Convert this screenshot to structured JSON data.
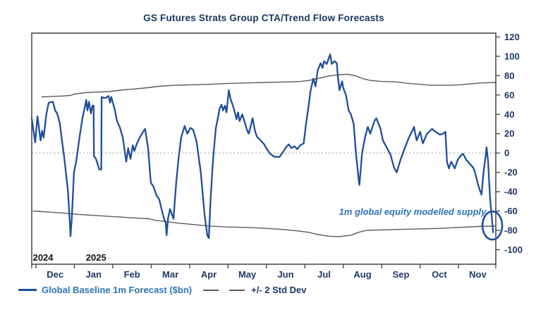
{
  "page": {
    "background": "#ffffff"
  },
  "legend": {
    "forecast_label": "Global Baseline 1m Forecast ($bn)",
    "stddev_label": "+/- 2 Std Dev"
  },
  "chart_data": {
    "type": "line",
    "title": "GS Futures Strats Group CTA/Trend Flow Forecasts",
    "xlabel": "",
    "ylabel": "",
    "x_unit": "months since 2024-12-01",
    "x_tick_labels": [
      "Dec",
      "Jan",
      "Feb",
      "Mar",
      "Apr",
      "May",
      "Jun",
      "Jul",
      "Aug",
      "Sep",
      "Oct",
      "Nov"
    ],
    "years": [
      {
        "label": "2024",
        "m": -0.08
      },
      {
        "label": "2025",
        "m": 1.3
      }
    ],
    "y_ticks": [
      120,
      100,
      80,
      60,
      40,
      20,
      0,
      -20,
      -40,
      -60,
      -80,
      -100
    ],
    "x_ticks": [
      -0.11,
      0,
      1,
      2,
      3,
      4,
      5,
      6,
      7,
      8,
      9,
      10,
      11,
      11.97
    ],
    "x_range": [
      -0.11,
      11.97
    ],
    "value_range": [
      -115,
      124
    ],
    "ylim": [
      -100,
      120
    ],
    "grid": "none (dotted zero line only)",
    "legend_position": "bottom-left",
    "colors": {
      "forecast": "#1F4E9B",
      "band": "#5a5a5a",
      "frame": "#4d4d4d",
      "zero_line": "#b3b3b3",
      "axis_text": "#1F3864",
      "title_text": "#17365D",
      "annotation_text": "#2E74B5"
    },
    "annotation": {
      "text": "1m global equity modelled supply",
      "m": 11.72,
      "value": -64
    },
    "highlight_ellipse": {
      "m": 11.88,
      "value": -75,
      "rx": 14,
      "ry": 20
    },
    "series": [
      {
        "name": "Global Baseline 1m Forecast ($bn)",
        "color": "#1F4E9B",
        "points": [
          [
            -0.11,
            36
          ],
          [
            -0.02,
            11
          ],
          [
            0.04,
            38
          ],
          [
            0.12,
            13
          ],
          [
            0.16,
            23
          ],
          [
            0.2,
            16
          ],
          [
            0.27,
            40
          ],
          [
            0.33,
            52
          ],
          [
            0.44,
            53
          ],
          [
            0.5,
            44
          ],
          [
            0.55,
            41
          ],
          [
            0.62,
            31
          ],
          [
            0.68,
            12
          ],
          [
            0.73,
            -3
          ],
          [
            0.83,
            -38
          ],
          [
            0.88,
            -70
          ],
          [
            0.9,
            -86
          ],
          [
            0.93,
            -70
          ],
          [
            0.99,
            -20
          ],
          [
            1.05,
            -8
          ],
          [
            1.14,
            18
          ],
          [
            1.21,
            36
          ],
          [
            1.28,
            49
          ],
          [
            1.31,
            55
          ],
          [
            1.34,
            44
          ],
          [
            1.38,
            53
          ],
          [
            1.43,
            41
          ],
          [
            1.47,
            49
          ],
          [
            1.5,
            49
          ],
          [
            1.51,
            -3
          ],
          [
            1.56,
            -6
          ],
          [
            1.65,
            -17
          ],
          [
            1.7,
            -17
          ],
          [
            1.71,
            58
          ],
          [
            1.76,
            57
          ],
          [
            1.82,
            57
          ],
          [
            1.89,
            59
          ],
          [
            1.93,
            52
          ],
          [
            1.96,
            58
          ],
          [
            2.05,
            45
          ],
          [
            2.11,
            33
          ],
          [
            2.18,
            27
          ],
          [
            2.26,
            16
          ],
          [
            2.35,
            -9
          ],
          [
            2.4,
            5
          ],
          [
            2.46,
            -6
          ],
          [
            2.52,
            8
          ],
          [
            2.56,
            2
          ],
          [
            2.63,
            10
          ],
          [
            2.7,
            16
          ],
          [
            2.79,
            22
          ],
          [
            2.84,
            25
          ],
          [
            2.92,
            5
          ],
          [
            2.99,
            -31
          ],
          [
            3.05,
            -34
          ],
          [
            3.14,
            -44
          ],
          [
            3.21,
            -48
          ],
          [
            3.32,
            -66
          ],
          [
            3.38,
            -73
          ],
          [
            3.4,
            -85
          ],
          [
            3.44,
            -67
          ],
          [
            3.49,
            -58
          ],
          [
            3.58,
            -68
          ],
          [
            3.65,
            -31
          ],
          [
            3.71,
            -6
          ],
          [
            3.78,
            16
          ],
          [
            3.87,
            28
          ],
          [
            3.94,
            20
          ],
          [
            4.02,
            26
          ],
          [
            4.09,
            24
          ],
          [
            4.18,
            12
          ],
          [
            4.29,
            -20
          ],
          [
            4.39,
            -64
          ],
          [
            4.46,
            -85
          ],
          [
            4.5,
            -88
          ],
          [
            4.55,
            -45
          ],
          [
            4.61,
            -7
          ],
          [
            4.68,
            25
          ],
          [
            4.73,
            35
          ],
          [
            4.78,
            46
          ],
          [
            4.83,
            50
          ],
          [
            4.87,
            44
          ],
          [
            4.92,
            49
          ],
          [
            4.96,
            42
          ],
          [
            5.02,
            65
          ],
          [
            5.07,
            55
          ],
          [
            5.11,
            51
          ],
          [
            5.15,
            46
          ],
          [
            5.22,
            35
          ],
          [
            5.26,
            42
          ],
          [
            5.3,
            33
          ],
          [
            5.37,
            40
          ],
          [
            5.44,
            31
          ],
          [
            5.5,
            23
          ],
          [
            5.54,
            20
          ],
          [
            5.64,
            36
          ],
          [
            5.7,
            23
          ],
          [
            5.75,
            17
          ],
          [
            5.85,
            13
          ],
          [
            5.94,
            9
          ],
          [
            6.03,
            3
          ],
          [
            6.1,
            -1
          ],
          [
            6.21,
            -4
          ],
          [
            6.34,
            -4
          ],
          [
            6.43,
            1
          ],
          [
            6.51,
            6
          ],
          [
            6.58,
            9
          ],
          [
            6.65,
            5
          ],
          [
            6.73,
            7
          ],
          [
            6.8,
            4
          ],
          [
            6.88,
            8
          ],
          [
            6.97,
            10
          ],
          [
            7.03,
            30
          ],
          [
            7.09,
            47
          ],
          [
            7.15,
            65
          ],
          [
            7.22,
            77
          ],
          [
            7.28,
            69
          ],
          [
            7.33,
            85
          ],
          [
            7.41,
            93
          ],
          [
            7.46,
            88
          ],
          [
            7.5,
            95
          ],
          [
            7.57,
            92
          ],
          [
            7.64,
            100
          ],
          [
            7.66,
            102
          ],
          [
            7.7,
            92
          ],
          [
            7.77,
            95
          ],
          [
            7.83,
            93
          ],
          [
            7.86,
            79
          ],
          [
            7.9,
            65
          ],
          [
            7.97,
            74
          ],
          [
            8.0,
            67
          ],
          [
            8.07,
            60
          ],
          [
            8.14,
            44
          ],
          [
            8.2,
            40
          ],
          [
            8.27,
            30
          ],
          [
            8.33,
            0
          ],
          [
            8.4,
            -27
          ],
          [
            8.42,
            -33
          ],
          [
            8.49,
            0
          ],
          [
            8.57,
            17
          ],
          [
            8.64,
            27
          ],
          [
            8.7,
            20
          ],
          [
            8.81,
            33
          ],
          [
            8.86,
            36
          ],
          [
            8.97,
            25
          ],
          [
            9.03,
            13
          ],
          [
            9.14,
            5
          ],
          [
            9.23,
            -2
          ],
          [
            9.32,
            -15
          ],
          [
            9.39,
            -20
          ],
          [
            9.49,
            -7
          ],
          [
            9.6,
            5
          ],
          [
            9.72,
            17
          ],
          [
            9.76,
            20
          ],
          [
            9.8,
            23
          ],
          [
            9.84,
            27
          ],
          [
            9.91,
            13
          ],
          [
            10.0,
            22
          ],
          [
            10.07,
            10
          ],
          [
            10.18,
            20
          ],
          [
            10.31,
            25
          ],
          [
            10.4,
            22
          ],
          [
            10.51,
            19
          ],
          [
            10.6,
            20
          ],
          [
            10.66,
            22
          ],
          [
            10.7,
            -9
          ],
          [
            10.75,
            -16
          ],
          [
            10.81,
            -9
          ],
          [
            10.9,
            -16
          ],
          [
            10.98,
            -7
          ],
          [
            11.07,
            -2
          ],
          [
            11.12,
            -1
          ],
          [
            11.2,
            -7
          ],
          [
            11.29,
            -11
          ],
          [
            11.38,
            -15
          ],
          [
            11.43,
            -20
          ],
          [
            11.49,
            -30
          ],
          [
            11.54,
            -37
          ],
          [
            11.6,
            -43
          ],
          [
            11.65,
            -20
          ],
          [
            11.71,
            -2
          ],
          [
            11.73,
            6
          ],
          [
            11.77,
            -9
          ],
          [
            11.8,
            -32
          ],
          [
            11.83,
            -52
          ],
          [
            11.86,
            -64
          ],
          [
            11.9,
            -82
          ]
        ]
      },
      {
        "name": "+2 Std Dev",
        "color": "#5a5a5a",
        "points": [
          [
            0.15,
            58
          ],
          [
            0.4,
            58.5
          ],
          [
            0.7,
            59
          ],
          [
            0.9,
            59.5
          ],
          [
            1.0,
            61
          ],
          [
            1.3,
            62.5
          ],
          [
            1.6,
            63
          ],
          [
            1.9,
            63.5
          ],
          [
            2.2,
            65
          ],
          [
            2.5,
            66
          ],
          [
            2.9,
            67.5
          ],
          [
            3.2,
            69
          ],
          [
            3.6,
            70
          ],
          [
            4.0,
            70.5
          ],
          [
            4.5,
            71
          ],
          [
            5.0,
            72
          ],
          [
            5.5,
            72.5
          ],
          [
            6.0,
            73
          ],
          [
            6.5,
            73.5
          ],
          [
            6.9,
            74
          ],
          [
            7.1,
            75
          ],
          [
            7.4,
            77.5
          ],
          [
            7.6,
            79.5
          ],
          [
            7.9,
            81
          ],
          [
            8.1,
            81.5
          ],
          [
            8.3,
            80
          ],
          [
            8.5,
            77
          ],
          [
            8.7,
            75
          ],
          [
            9.0,
            74
          ],
          [
            9.4,
            73.5
          ],
          [
            9.7,
            72
          ],
          [
            10.0,
            71
          ],
          [
            10.3,
            70
          ],
          [
            10.7,
            70
          ],
          [
            11.0,
            70.5
          ],
          [
            11.3,
            71.5
          ],
          [
            11.6,
            72.5
          ],
          [
            11.97,
            73
          ]
        ]
      },
      {
        "name": "-2 Std Dev",
        "color": "#5a5a5a",
        "points": [
          [
            -0.07,
            -60
          ],
          [
            0.3,
            -61
          ],
          [
            0.7,
            -62
          ],
          [
            1.1,
            -63.5
          ],
          [
            1.5,
            -64.5
          ],
          [
            1.9,
            -65.5
          ],
          [
            2.3,
            -66.5
          ],
          [
            2.7,
            -67.5
          ],
          [
            2.94,
            -68
          ],
          [
            3.1,
            -69.5
          ],
          [
            3.4,
            -71
          ],
          [
            3.7,
            -72.5
          ],
          [
            4.1,
            -74
          ],
          [
            4.5,
            -75.5
          ],
          [
            5.0,
            -76.5
          ],
          [
            5.5,
            -77
          ],
          [
            6.0,
            -78
          ],
          [
            6.4,
            -79
          ],
          [
            6.8,
            -80.5
          ],
          [
            7.1,
            -82
          ],
          [
            7.3,
            -84
          ],
          [
            7.6,
            -86
          ],
          [
            7.9,
            -86.5
          ],
          [
            8.2,
            -85
          ],
          [
            8.4,
            -82
          ],
          [
            8.6,
            -80
          ],
          [
            9.0,
            -79.5
          ],
          [
            9.5,
            -79
          ],
          [
            10.0,
            -78.5
          ],
          [
            10.5,
            -78
          ],
          [
            11.0,
            -77
          ],
          [
            11.5,
            -76
          ],
          [
            11.97,
            -75.5
          ]
        ]
      }
    ]
  }
}
